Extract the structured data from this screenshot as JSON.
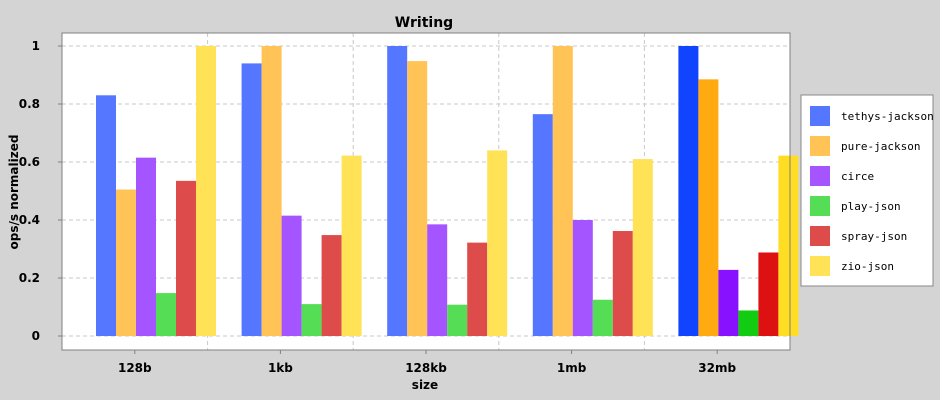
{
  "chart_data": {
    "type": "bar",
    "title": "Writing",
    "xlabel": "size",
    "ylabel": "ops/s normalized",
    "ylim": [
      0,
      1.03
    ],
    "yticks": [
      0,
      0.2,
      0.4,
      0.6,
      0.8,
      1
    ],
    "ytick_labels": [
      "0",
      "0.2",
      "0.4",
      "0.6",
      "0.8",
      "1"
    ],
    "grid": true,
    "legend_position": "right",
    "categories": [
      "128b",
      "1kb",
      "128kb",
      "1mb",
      "32mb"
    ],
    "series": [
      {
        "name": "tethys-jackson",
        "color": "#5577ff",
        "last_color": "#1144ff",
        "values": [
          0.83,
          0.94,
          1.0,
          0.765,
          1.0
        ]
      },
      {
        "name": "pure-jackson",
        "color": "#ffc455",
        "last_color": "#ffaa11",
        "values": [
          0.505,
          1.0,
          0.948,
          1.0,
          0.885
        ]
      },
      {
        "name": "circe",
        "color": "#a455ff",
        "last_color": "#8811ff",
        "values": [
          0.615,
          0.415,
          0.385,
          0.4,
          0.228
        ]
      },
      {
        "name": "play-json",
        "color": "#55dd55",
        "last_color": "#11cc11",
        "values": [
          0.148,
          0.11,
          0.108,
          0.125,
          0.088
        ]
      },
      {
        "name": "spray-json",
        "color": "#dd4b4b",
        "last_color": "#dd1111",
        "values": [
          0.535,
          0.348,
          0.322,
          0.362,
          0.288
        ]
      },
      {
        "name": "zio-json",
        "color": "#ffe255",
        "last_color": "#ffdd22",
        "values": [
          1.0,
          0.622,
          0.64,
          0.61,
          0.622
        ]
      }
    ]
  }
}
